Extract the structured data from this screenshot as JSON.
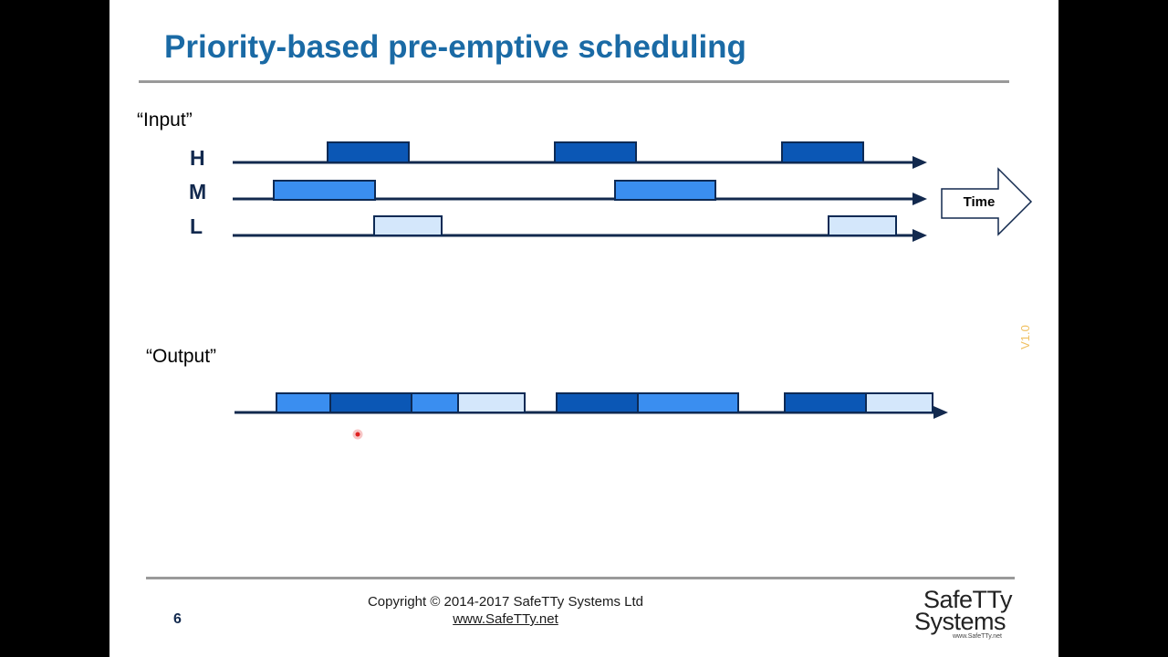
{
  "slide": {
    "title": "Priority-based pre-emptive scheduling",
    "input_label": "“Input”",
    "output_label": "“Output”",
    "priorities": [
      "H",
      "M",
      "L"
    ],
    "time_label": "Time",
    "version": "V1.0",
    "page_number": "6",
    "copyright": "Copyright © 2014-2017 SafeTTy Systems Ltd",
    "website": "www.SafeTTy.net"
  },
  "logo": {
    "line1": "SafeTTy",
    "line2": "Systems",
    "url": "www.SafeTTy.net"
  },
  "colors": {
    "high": "#0b57b5",
    "medium": "#3a8ef0",
    "low": "#d4e7fb",
    "outline": "#0d2a55",
    "axis": "#12294e"
  }
}
